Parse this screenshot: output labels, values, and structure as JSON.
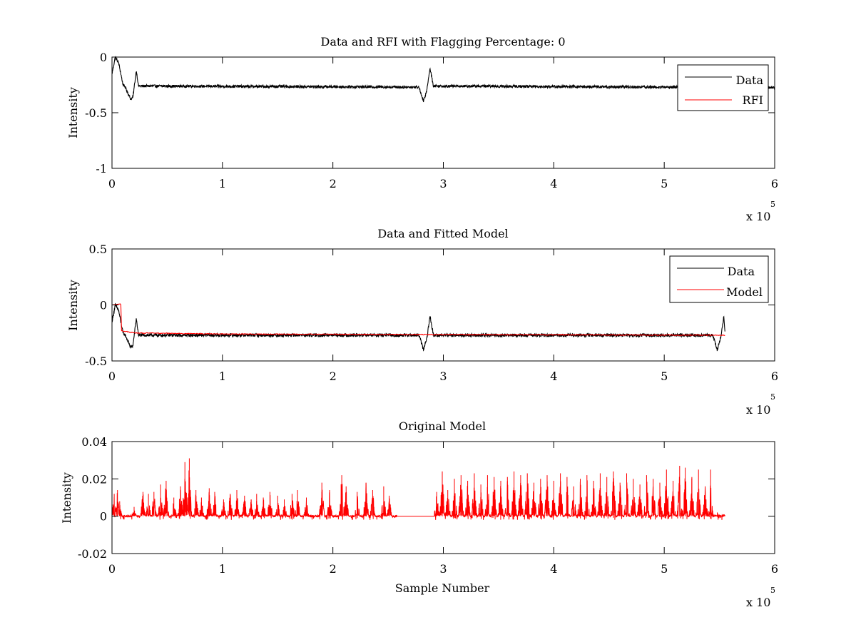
{
  "figure": {
    "background": "#ffffff",
    "data_color": "#000000",
    "rfi_color": "#ff0000"
  },
  "chart_data": [
    {
      "type": "line",
      "title": "Data and RFI with Flagging Percentage: 0",
      "xlabel": "",
      "ylabel": "Intensity",
      "xlim": [
        0,
        600000
      ],
      "ylim": [
        -1,
        0
      ],
      "xticks": [
        0,
        1,
        2,
        3,
        4,
        5,
        6
      ],
      "yticks": [
        0,
        -0.5,
        -1
      ],
      "ytick_labels": [
        "0",
        "-0.5",
        "-1"
      ],
      "x_multiplier_base": "x 10",
      "x_multiplier_exp": "5",
      "legend": {
        "location": "top-right",
        "entries": [
          "Data",
          "RFI"
        ]
      },
      "series": [
        {
          "name": "Data",
          "color": "#000000",
          "kind": "noisy-baseline",
          "x_end": 600000,
          "baseline": -0.265,
          "noise": 0.012,
          "anchors": [
            [
              0,
              -0.15
            ],
            [
              3000,
              0.0
            ],
            [
              6000,
              -0.05
            ],
            [
              10000,
              -0.25
            ],
            [
              12000,
              -0.27
            ],
            [
              17000,
              -0.38
            ],
            [
              19000,
              -0.36
            ],
            [
              22000,
              -0.12
            ],
            [
              24000,
              -0.26
            ],
            [
              278000,
              -0.27
            ],
            [
              282000,
              -0.4
            ],
            [
              285000,
              -0.3
            ],
            [
              288000,
              -0.1
            ],
            [
              291000,
              -0.26
            ],
            [
              600000,
              -0.275
            ]
          ]
        },
        {
          "name": "RFI",
          "color": "#ff0000",
          "kind": "empty",
          "x_end": 0
        }
      ]
    },
    {
      "type": "line",
      "title": "Data and Fitted Model",
      "xlabel": "",
      "ylabel": "Intensity",
      "xlim": [
        0,
        600000
      ],
      "ylim": [
        -0.5,
        0.5
      ],
      "xticks": [
        0,
        1,
        2,
        3,
        4,
        5,
        6
      ],
      "yticks": [
        0.5,
        0,
        -0.5
      ],
      "ytick_labels": [
        "0.5",
        "0",
        "-0.5"
      ],
      "x_multiplier_base": "x 10",
      "x_multiplier_exp": "5",
      "legend": {
        "location": "top-right",
        "entries": [
          "Data",
          "Model"
        ]
      },
      "series": [
        {
          "name": "Data",
          "color": "#000000",
          "kind": "noisy-baseline",
          "x_end": 555000,
          "baseline": -0.27,
          "noise": 0.014,
          "anchors": [
            [
              0,
              -0.15
            ],
            [
              3000,
              0.0
            ],
            [
              6000,
              -0.05
            ],
            [
              10000,
              -0.25
            ],
            [
              12000,
              -0.27
            ],
            [
              17000,
              -0.38
            ],
            [
              19000,
              -0.36
            ],
            [
              22000,
              -0.12
            ],
            [
              24000,
              -0.27
            ],
            [
              278000,
              -0.27
            ],
            [
              282000,
              -0.4
            ],
            [
              285000,
              -0.3
            ],
            [
              288000,
              -0.1
            ],
            [
              291000,
              -0.27
            ],
            [
              544000,
              -0.27
            ],
            [
              548000,
              -0.4
            ],
            [
              551000,
              -0.3
            ],
            [
              554000,
              -0.1
            ],
            [
              555000,
              -0.25
            ]
          ]
        },
        {
          "name": "Model",
          "color": "#ff0000",
          "kind": "step-model",
          "x_end": 555000,
          "anchors": [
            [
              0,
              0.0
            ],
            [
              8000,
              0.01
            ],
            [
              8500,
              -0.23
            ],
            [
              20000,
              -0.25
            ],
            [
              100000,
              -0.26
            ],
            [
              300000,
              -0.265
            ],
            [
              555000,
              -0.27
            ]
          ]
        }
      ]
    },
    {
      "type": "line",
      "title": "Original Model",
      "xlabel": "Sample Number",
      "ylabel": "Intensity",
      "xlim": [
        0,
        600000
      ],
      "ylim": [
        -0.02,
        0.04
      ],
      "xticks": [
        0,
        1,
        2,
        3,
        4,
        5,
        6
      ],
      "yticks": [
        0.04,
        0.02,
        0,
        -0.02
      ],
      "ytick_labels": [
        "0.04",
        "0.02",
        "0",
        "-0.02"
      ],
      "x_multiplier_base": "x 10",
      "x_multiplier_exp": "5",
      "series": [
        {
          "name": "",
          "color": "#ff0000",
          "kind": "spikes",
          "x_end": 555000,
          "gap": [
            258000,
            292000
          ],
          "spikes": [
            [
              2000,
              0.012
            ],
            [
              5000,
              0.014
            ],
            [
              7000,
              0.008
            ],
            [
              20000,
              0.005
            ],
            [
              28000,
              0.013
            ],
            [
              33000,
              0.012
            ],
            [
              38000,
              0.013
            ],
            [
              44000,
              0.017
            ],
            [
              49000,
              0.019
            ],
            [
              56000,
              0.01
            ],
            [
              62000,
              0.016
            ],
            [
              66000,
              0.029
            ],
            [
              70000,
              0.031
            ],
            [
              76000,
              0.014
            ],
            [
              81000,
              0.01
            ],
            [
              88000,
              0.015
            ],
            [
              93000,
              0.013
            ],
            [
              101000,
              0.009
            ],
            [
              107000,
              0.012
            ],
            [
              113000,
              0.014
            ],
            [
              120000,
              0.011
            ],
            [
              126000,
              0.009
            ],
            [
              131000,
              0.012
            ],
            [
              137000,
              0.01
            ],
            [
              143000,
              0.013
            ],
            [
              150000,
              0.011
            ],
            [
              156000,
              0.009
            ],
            [
              163000,
              0.012
            ],
            [
              168000,
              0.014
            ],
            [
              176000,
              0.01
            ],
            [
              190000,
              0.018
            ],
            [
              197000,
              0.014
            ],
            [
              208000,
              0.022
            ],
            [
              212000,
              0.016
            ],
            [
              222000,
              0.013
            ],
            [
              230000,
              0.018
            ],
            [
              236000,
              0.014
            ],
            [
              246000,
              0.016
            ],
            [
              251000,
              0.011
            ],
            [
              294000,
              0.013
            ],
            [
              299000,
              0.024
            ],
            [
              304000,
              0.014
            ],
            [
              310000,
              0.02
            ],
            [
              316000,
              0.022
            ],
            [
              322000,
              0.019
            ],
            [
              328000,
              0.023
            ],
            [
              334000,
              0.017
            ],
            [
              340000,
              0.022
            ],
            [
              346000,
              0.021
            ],
            [
              352000,
              0.019
            ],
            [
              358000,
              0.021
            ],
            [
              364000,
              0.024
            ],
            [
              370000,
              0.022
            ],
            [
              376000,
              0.023
            ],
            [
              382000,
              0.018
            ],
            [
              388000,
              0.02
            ],
            [
              394000,
              0.022
            ],
            [
              400000,
              0.019
            ],
            [
              406000,
              0.023
            ],
            [
              412000,
              0.021
            ],
            [
              418000,
              0.016
            ],
            [
              424000,
              0.02
            ],
            [
              430000,
              0.022
            ],
            [
              436000,
              0.019
            ],
            [
              442000,
              0.023
            ],
            [
              448000,
              0.021
            ],
            [
              454000,
              0.024
            ],
            [
              460000,
              0.018
            ],
            [
              466000,
              0.023
            ],
            [
              472000,
              0.02
            ],
            [
              478000,
              0.017
            ],
            [
              484000,
              0.022
            ],
            [
              490000,
              0.02
            ],
            [
              496000,
              0.018
            ],
            [
              502000,
              0.025
            ],
            [
              508000,
              0.019
            ],
            [
              514000,
              0.027
            ],
            [
              519000,
              0.026
            ],
            [
              525000,
              0.021
            ],
            [
              531000,
              0.025
            ],
            [
              537000,
              0.016
            ],
            [
              542000,
              0.025
            ],
            [
              548000,
              0.002
            ],
            [
              554000,
              0.001
            ]
          ]
        }
      ]
    }
  ]
}
